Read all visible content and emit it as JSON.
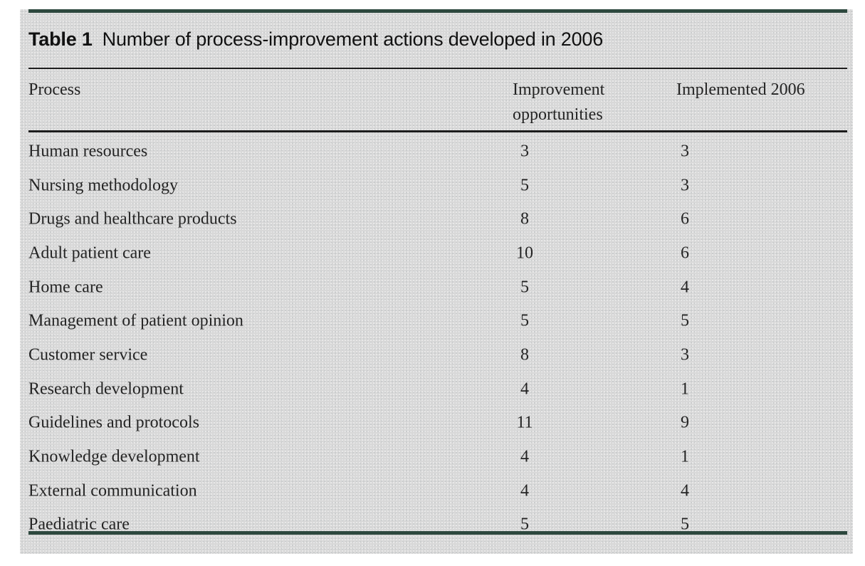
{
  "colors": {
    "page_background": "#ffffff",
    "panel_background": "#d8d8d8",
    "frame_rule": "#2d483e",
    "inner_rule": "#1c1c1c",
    "text": "#242424"
  },
  "table": {
    "title_label": "Table 1",
    "title": "Number of process-improvement actions developed in 2006",
    "col_headers": [
      "Process",
      "Improvement opportunities",
      "Implemented 2006"
    ],
    "rows": [
      [
        "Human resources",
        "3",
        "3"
      ],
      [
        "Nursing methodology",
        "5",
        "3"
      ],
      [
        "Drugs and healthcare products",
        "8",
        "6"
      ],
      [
        "Adult patient care",
        "10",
        "6"
      ],
      [
        "Home care",
        "5",
        "4"
      ],
      [
        "Management of patient opinion",
        "5",
        "5"
      ],
      [
        "Customer service",
        "8",
        "3"
      ],
      [
        "Research development",
        "4",
        "1"
      ],
      [
        "Guidelines and protocols",
        "11",
        "9"
      ],
      [
        "Knowledge development",
        "4",
        "1"
      ],
      [
        "External communication",
        "4",
        "4"
      ],
      [
        "Paediatric care",
        "5",
        "5"
      ]
    ]
  }
}
